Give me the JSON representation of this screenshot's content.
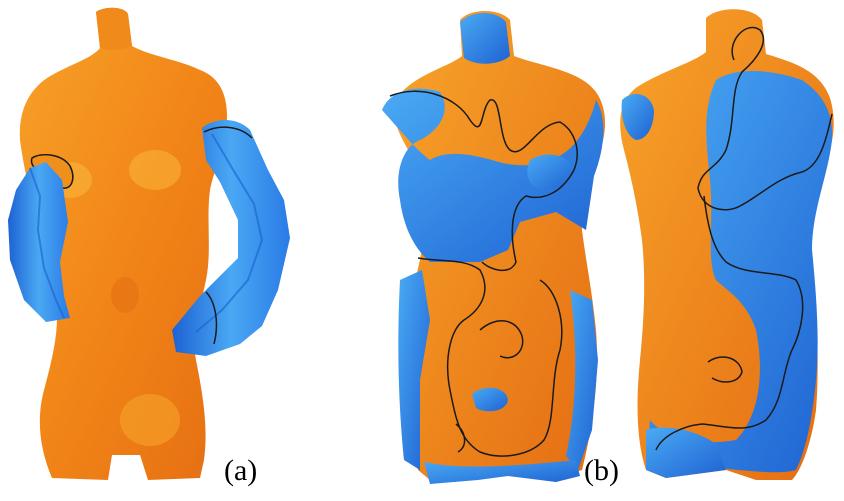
{
  "panels": [
    {
      "label": "(a)",
      "description_colors": [
        "#f28b1c",
        "#2f7fe6"
      ]
    },
    {
      "label": "(b)"
    }
  ],
  "colors": {
    "orange": "#f5891a",
    "orange_light": "#fbb02a",
    "orange_dark": "#e26a12",
    "blue": "#2f83ea",
    "blue_light": "#53b3f5",
    "blue_dark": "#1b5fcf",
    "outline": "#1a1a1a",
    "background": "#ffffff"
  },
  "icons": [
    "torso-with-arms-render",
    "torso-front-render",
    "torso-back-render"
  ]
}
